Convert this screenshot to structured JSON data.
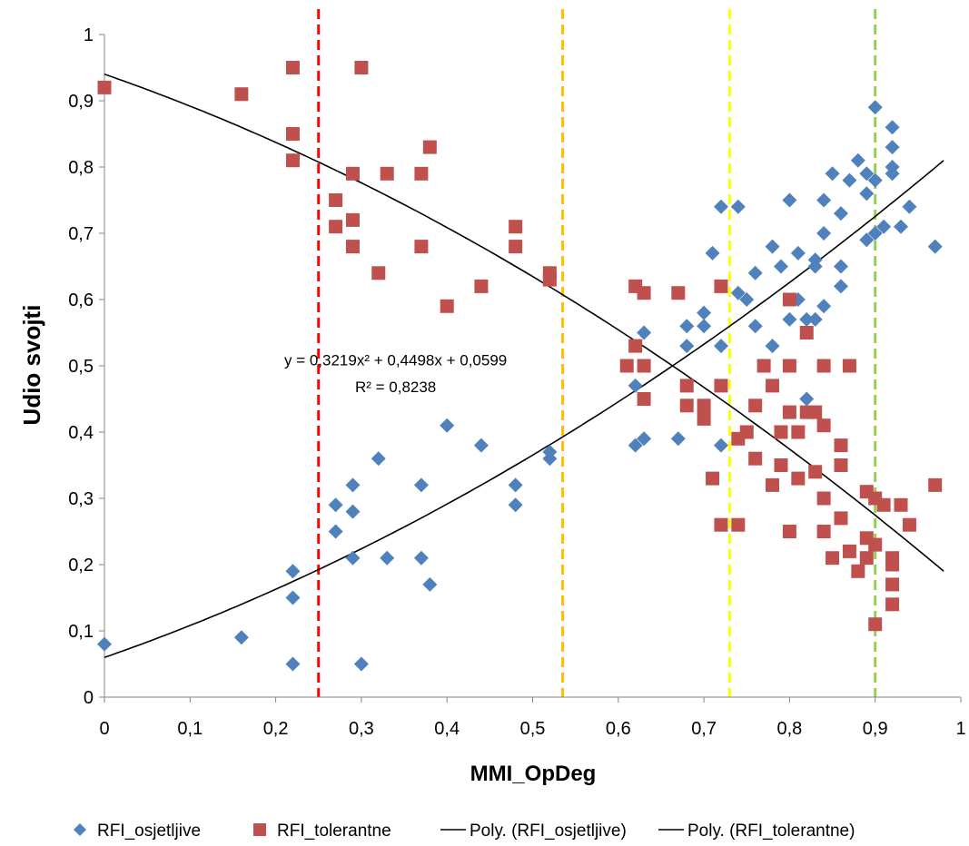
{
  "chart_data": {
    "type": "scatter",
    "title": "",
    "xlabel": "MMI_OpDeg",
    "ylabel": "Udio svojti",
    "xlim": [
      0,
      1
    ],
    "ylim": [
      0,
      1
    ],
    "x_ticks": [
      "0",
      "0,1",
      "0,2",
      "0,3",
      "0,4",
      "0,5",
      "0,6",
      "0,7",
      "0,8",
      "0,9",
      "1"
    ],
    "y_ticks": [
      "0",
      "0,1",
      "0,2",
      "0,3",
      "0,4",
      "0,5",
      "0,6",
      "0,7",
      "0,8",
      "0,9",
      "1"
    ],
    "grid": false,
    "legend_position": "bottom",
    "series": [
      {
        "name": "RFI_osjetljive",
        "marker": "diamond",
        "color": "#4f81bd",
        "points": [
          [
            0,
            0.08
          ],
          [
            0.16,
            0.09
          ],
          [
            0.22,
            0.05
          ],
          [
            0.22,
            0.15
          ],
          [
            0.22,
            0.19
          ],
          [
            0.27,
            0.25
          ],
          [
            0.27,
            0.29
          ],
          [
            0.29,
            0.21
          ],
          [
            0.29,
            0.28
          ],
          [
            0.29,
            0.32
          ],
          [
            0.3,
            0.05
          ],
          [
            0.32,
            0.36
          ],
          [
            0.33,
            0.21
          ],
          [
            0.37,
            0.21
          ],
          [
            0.37,
            0.32
          ],
          [
            0.38,
            0.17
          ],
          [
            0.4,
            0.41
          ],
          [
            0.44,
            0.38
          ],
          [
            0.48,
            0.29
          ],
          [
            0.48,
            0.32
          ],
          [
            0.52,
            0.36
          ],
          [
            0.52,
            0.37
          ],
          [
            0.62,
            0.38
          ],
          [
            0.62,
            0.47
          ],
          [
            0.63,
            0.39
          ],
          [
            0.63,
            0.55
          ],
          [
            0.67,
            0.39
          ],
          [
            0.68,
            0.53
          ],
          [
            0.68,
            0.56
          ],
          [
            0.7,
            0.56
          ],
          [
            0.7,
            0.58
          ],
          [
            0.71,
            0.67
          ],
          [
            0.72,
            0.38
          ],
          [
            0.72,
            0.53
          ],
          [
            0.72,
            0.74
          ],
          [
            0.74,
            0.61
          ],
          [
            0.74,
            0.74
          ],
          [
            0.75,
            0.6
          ],
          [
            0.76,
            0.56
          ],
          [
            0.76,
            0.64
          ],
          [
            0.78,
            0.53
          ],
          [
            0.78,
            0.68
          ],
          [
            0.79,
            0.65
          ],
          [
            0.8,
            0.57
          ],
          [
            0.8,
            0.75
          ],
          [
            0.81,
            0.6
          ],
          [
            0.81,
            0.67
          ],
          [
            0.82,
            0.45
          ],
          [
            0.82,
            0.57
          ],
          [
            0.83,
            0.57
          ],
          [
            0.83,
            0.65
          ],
          [
            0.83,
            0.66
          ],
          [
            0.84,
            0.59
          ],
          [
            0.84,
            0.7
          ],
          [
            0.84,
            0.75
          ],
          [
            0.85,
            0.79
          ],
          [
            0.86,
            0.62
          ],
          [
            0.86,
            0.65
          ],
          [
            0.86,
            0.73
          ],
          [
            0.87,
            0.78
          ],
          [
            0.88,
            0.81
          ],
          [
            0.89,
            0.69
          ],
          [
            0.89,
            0.76
          ],
          [
            0.89,
            0.79
          ],
          [
            0.9,
            0.7
          ],
          [
            0.9,
            0.78
          ],
          [
            0.9,
            0.89
          ],
          [
            0.91,
            0.71
          ],
          [
            0.92,
            0.79
          ],
          [
            0.92,
            0.8
          ],
          [
            0.92,
            0.83
          ],
          [
            0.92,
            0.86
          ],
          [
            0.93,
            0.71
          ],
          [
            0.94,
            0.74
          ],
          [
            0.97,
            0.68
          ]
        ]
      },
      {
        "name": "RFI_tolerantne",
        "marker": "square",
        "color": "#c0504d",
        "points": [
          [
            0,
            0.92
          ],
          [
            0.16,
            0.91
          ],
          [
            0.22,
            0.95
          ],
          [
            0.22,
            0.85
          ],
          [
            0.22,
            0.81
          ],
          [
            0.27,
            0.75
          ],
          [
            0.27,
            0.71
          ],
          [
            0.29,
            0.79
          ],
          [
            0.29,
            0.72
          ],
          [
            0.29,
            0.68
          ],
          [
            0.3,
            0.95
          ],
          [
            0.32,
            0.64
          ],
          [
            0.33,
            0.79
          ],
          [
            0.37,
            0.79
          ],
          [
            0.37,
            0.68
          ],
          [
            0.38,
            0.83
          ],
          [
            0.4,
            0.59
          ],
          [
            0.44,
            0.62
          ],
          [
            0.48,
            0.71
          ],
          [
            0.48,
            0.68
          ],
          [
            0.52,
            0.64
          ],
          [
            0.52,
            0.63
          ],
          [
            0.61,
            0.5
          ],
          [
            0.62,
            0.62
          ],
          [
            0.62,
            0.53
          ],
          [
            0.63,
            0.61
          ],
          [
            0.63,
            0.5
          ],
          [
            0.63,
            0.45
          ],
          [
            0.67,
            0.61
          ],
          [
            0.68,
            0.47
          ],
          [
            0.68,
            0.44
          ],
          [
            0.7,
            0.44
          ],
          [
            0.7,
            0.42
          ],
          [
            0.71,
            0.33
          ],
          [
            0.72,
            0.26
          ],
          [
            0.72,
            0.47
          ],
          [
            0.72,
            0.62
          ],
          [
            0.74,
            0.39
          ],
          [
            0.74,
            0.26
          ],
          [
            0.75,
            0.4
          ],
          [
            0.76,
            0.44
          ],
          [
            0.76,
            0.36
          ],
          [
            0.77,
            0.5
          ],
          [
            0.78,
            0.47
          ],
          [
            0.78,
            0.32
          ],
          [
            0.79,
            0.35
          ],
          [
            0.79,
            0.4
          ],
          [
            0.8,
            0.6
          ],
          [
            0.8,
            0.5
          ],
          [
            0.8,
            0.43
          ],
          [
            0.8,
            0.25
          ],
          [
            0.81,
            0.4
          ],
          [
            0.81,
            0.33
          ],
          [
            0.82,
            0.55
          ],
          [
            0.82,
            0.43
          ],
          [
            0.83,
            0.43
          ],
          [
            0.83,
            0.34
          ],
          [
            0.84,
            0.5
          ],
          [
            0.84,
            0.41
          ],
          [
            0.84,
            0.3
          ],
          [
            0.84,
            0.25
          ],
          [
            0.85,
            0.21
          ],
          [
            0.86,
            0.38
          ],
          [
            0.86,
            0.35
          ],
          [
            0.86,
            0.27
          ],
          [
            0.87,
            0.5
          ],
          [
            0.87,
            0.22
          ],
          [
            0.88,
            0.19
          ],
          [
            0.89,
            0.31
          ],
          [
            0.89,
            0.24
          ],
          [
            0.89,
            0.21
          ],
          [
            0.9,
            0.3
          ],
          [
            0.9,
            0.23
          ],
          [
            0.9,
            0.11
          ],
          [
            0.91,
            0.29
          ],
          [
            0.92,
            0.21
          ],
          [
            0.92,
            0.2
          ],
          [
            0.92,
            0.17
          ],
          [
            0.92,
            0.14
          ],
          [
            0.93,
            0.29
          ],
          [
            0.94,
            0.26
          ],
          [
            0.97,
            0.32
          ]
        ]
      }
    ],
    "trendlines": [
      {
        "name": "Poly. (RFI_osjetljive)",
        "series": "RFI_osjetljive",
        "order": 2,
        "coefficients": [
          0.3219,
          0.4498,
          0.0599
        ],
        "x_range": [
          0,
          0.98
        ],
        "color": "#000000"
      },
      {
        "name": "Poly. (RFI_tolerantne)",
        "series": "RFI_tolerantne",
        "order": 2,
        "coefficients": [
          -0.3219,
          -0.4498,
          0.9401
        ],
        "x_range": [
          0,
          0.98
        ],
        "color": "#000000"
      }
    ],
    "reference_lines": [
      {
        "x": 0.25,
        "color": "#ff0000",
        "style": "dashed"
      },
      {
        "x": 0.535,
        "color": "#ffc000",
        "style": "dashed"
      },
      {
        "x": 0.73,
        "color": "#ffff00",
        "style": "dashed"
      },
      {
        "x": 0.9,
        "color": "#92d050",
        "style": "dashed"
      }
    ],
    "annotations": [
      {
        "text": "y = 0,3219x² + 0,4498x + 0,0599",
        "x": 0.34,
        "y": 0.51
      },
      {
        "text": "R² = 0,8238",
        "x": 0.34,
        "y": 0.47
      }
    ]
  },
  "legend": {
    "items": [
      {
        "label": "RFI_osjetljive",
        "symbol": "diamond",
        "color": "#4f81bd"
      },
      {
        "label": "RFI_tolerantne",
        "symbol": "square",
        "color": "#c0504d"
      },
      {
        "label": "Poly. (RFI_osjetljive)",
        "symbol": "line",
        "color": "#000000"
      },
      {
        "label": "Poly. (RFI_tolerantne)",
        "symbol": "line",
        "color": "#000000"
      }
    ]
  }
}
